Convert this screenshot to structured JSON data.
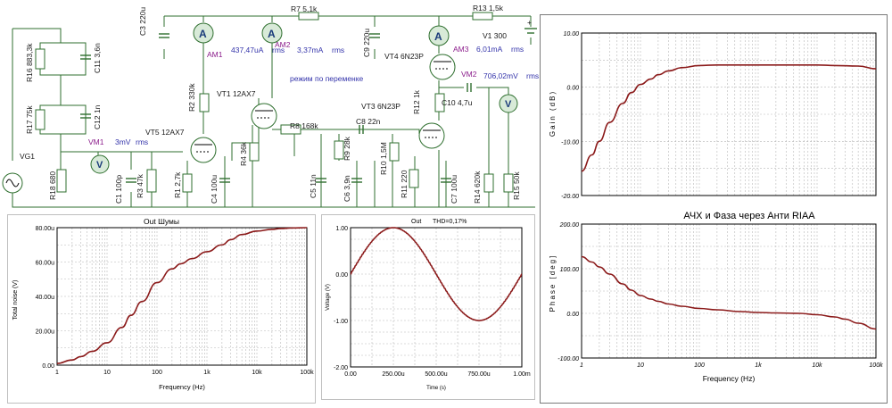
{
  "schematic": {
    "components": {
      "c3": "C3 220u",
      "r7": "R7 5,1k",
      "r13": "R13 1,5k",
      "v1": "V1 300",
      "am1": "AM1",
      "am1_val": "437,47uA",
      "am1_unit": "rms",
      "am2_hidden": "AM2",
      "am2_val": "3,37mA",
      "am2_unit": "rms",
      "c9": "C9 220u",
      "vt4": "VT4 6N23P",
      "am3": "AM3",
      "am3_val": "6,01mA",
      "am3_unit": "rms",
      "vm2": "VM2",
      "vm2_val": "706,02mV",
      "vm2_unit": "rms",
      "r16": "R16 883,3k",
      "c11": "C11 3,6n",
      "r17": "R17 75k",
      "c12": "C12 1n",
      "r2": "R2 330k",
      "vt1": "VT1 12AX7",
      "mode": "режим по переменке",
      "r12": "R12 1k",
      "c10": "C10 4,7u",
      "vt5": "VT5 12AX7",
      "vm1": "VM1",
      "vm1_val": "3mV",
      "vm1_unit": "rms",
      "r8": "R8 168k",
      "c8": "C8 22n",
      "vt3": "VT3 6N23P",
      "r4": "R4 36k",
      "r9": "R9 28k",
      "r10": "R10 1,5M",
      "vg1": "VG1",
      "r18": "R18 680",
      "c1": "C1 100p",
      "r3": "R3 47k",
      "r1": "R1 2,7k",
      "c4": "C4 100u",
      "c5": "C5 11n",
      "c6": "C6 3,9n",
      "r11": "R11 220",
      "c7": "C7 100u",
      "r14": "R14 620k",
      "r15": "R15 50k",
      "plus": "+"
    }
  },
  "chart_data": [
    {
      "id": "noise",
      "type": "line",
      "title": "Out Шумы",
      "xlabel": "Frequency (Hz)",
      "ylabel": "Total noise (V)",
      "xscale": "log",
      "xlim": [
        1,
        100000
      ],
      "ylim": [
        0,
        80
      ],
      "xticks": [
        1,
        10,
        100,
        1000,
        10000,
        100000
      ],
      "xtick_labels": [
        "1",
        "10",
        "100",
        "1k",
        "10k",
        "100k"
      ],
      "yticks": [
        0,
        20,
        40,
        60,
        80
      ],
      "ytick_labels": [
        "0.00",
        "20.00u",
        "40.00u",
        "60.00u",
        "80.00u"
      ],
      "grid": true,
      "x": [
        1,
        2,
        3,
        5,
        10,
        20,
        30,
        50,
        100,
        200,
        300,
        500,
        1000,
        2000,
        3000,
        5000,
        10000,
        20000,
        30000,
        50000,
        100000
      ],
      "y": [
        1,
        3,
        5,
        8,
        13,
        22,
        29,
        37,
        48,
        56,
        59,
        62,
        66,
        70,
        73,
        76,
        78,
        79,
        79.5,
        79.8,
        80
      ]
    },
    {
      "id": "out",
      "type": "line",
      "title": "Out",
      "annotation": "THD=0,17%",
      "xlabel": "Time (s)",
      "ylabel": "Voltage (V)",
      "xlim": [
        0,
        1000
      ],
      "ylim": [
        -2,
        1
      ],
      "xticks": [
        0,
        250,
        500,
        750,
        1000
      ],
      "xtick_labels": [
        "0.00",
        "250.00u",
        "500.00u",
        "750.00u",
        "1.00m"
      ],
      "yticks": [
        -2,
        -1,
        0,
        1
      ],
      "ytick_labels": [
        "-2.00",
        "-1.00",
        "0.00",
        "1.00"
      ],
      "grid": true,
      "amplitude": 1.0,
      "period": 1000
    },
    {
      "id": "gain",
      "type": "line",
      "title": "АЧХ и Фаза через Анти RIAA",
      "ylabel": "Gain (dB)",
      "xscale": "log",
      "xlim": [
        1,
        100000
      ],
      "ylim": [
        -20,
        10
      ],
      "xticks": [
        1,
        10,
        100,
        1000,
        10000,
        100000
      ],
      "yticks": [
        -20,
        -10,
        0,
        10
      ],
      "ytick_labels": [
        "-20.00",
        "-10.00",
        "0.00",
        "10.00"
      ],
      "grid": true,
      "x": [
        1,
        1.5,
        2,
        3,
        5,
        7,
        10,
        15,
        20,
        30,
        50,
        100,
        200,
        500,
        1000,
        2000,
        5000,
        10000,
        20000,
        50000,
        100000
      ],
      "y": [
        -15.5,
        -12.5,
        -10,
        -6.5,
        -3,
        -1,
        0.5,
        1.5,
        2.3,
        3,
        3.6,
        4,
        4.1,
        4.1,
        4.1,
        4.1,
        4.1,
        4.1,
        4,
        3.9,
        3.4
      ]
    },
    {
      "id": "phase",
      "type": "line",
      "xlabel": "Frequency (Hz)",
      "ylabel": "Phase [deg]",
      "xscale": "log",
      "xlim": [
        1,
        100000
      ],
      "ylim": [
        -100,
        200
      ],
      "xticks": [
        1,
        10,
        100,
        1000,
        10000,
        100000
      ],
      "xtick_labels": [
        "1",
        "10",
        "100",
        "1k",
        "10k",
        "100k"
      ],
      "yticks": [
        -100,
        0,
        100,
        200
      ],
      "ytick_labels": [
        "-100.00",
        "0.00",
        "100.00",
        "200.00"
      ],
      "grid": true,
      "x": [
        1,
        1.5,
        2,
        3,
        5,
        7,
        10,
        15,
        20,
        30,
        50,
        100,
        200,
        500,
        1000,
        2000,
        5000,
        10000,
        20000,
        30000,
        50000,
        100000
      ],
      "y": [
        127,
        115,
        104,
        88,
        66,
        52,
        40,
        32,
        27,
        21,
        16,
        11,
        8,
        4,
        2,
        1,
        0,
        -3,
        -8,
        -13,
        -22,
        -35
      ]
    }
  ],
  "colors": {
    "curve": "#8b1a1a",
    "wire": "#2f6f2f",
    "meter_fill": "#d8ead8"
  }
}
